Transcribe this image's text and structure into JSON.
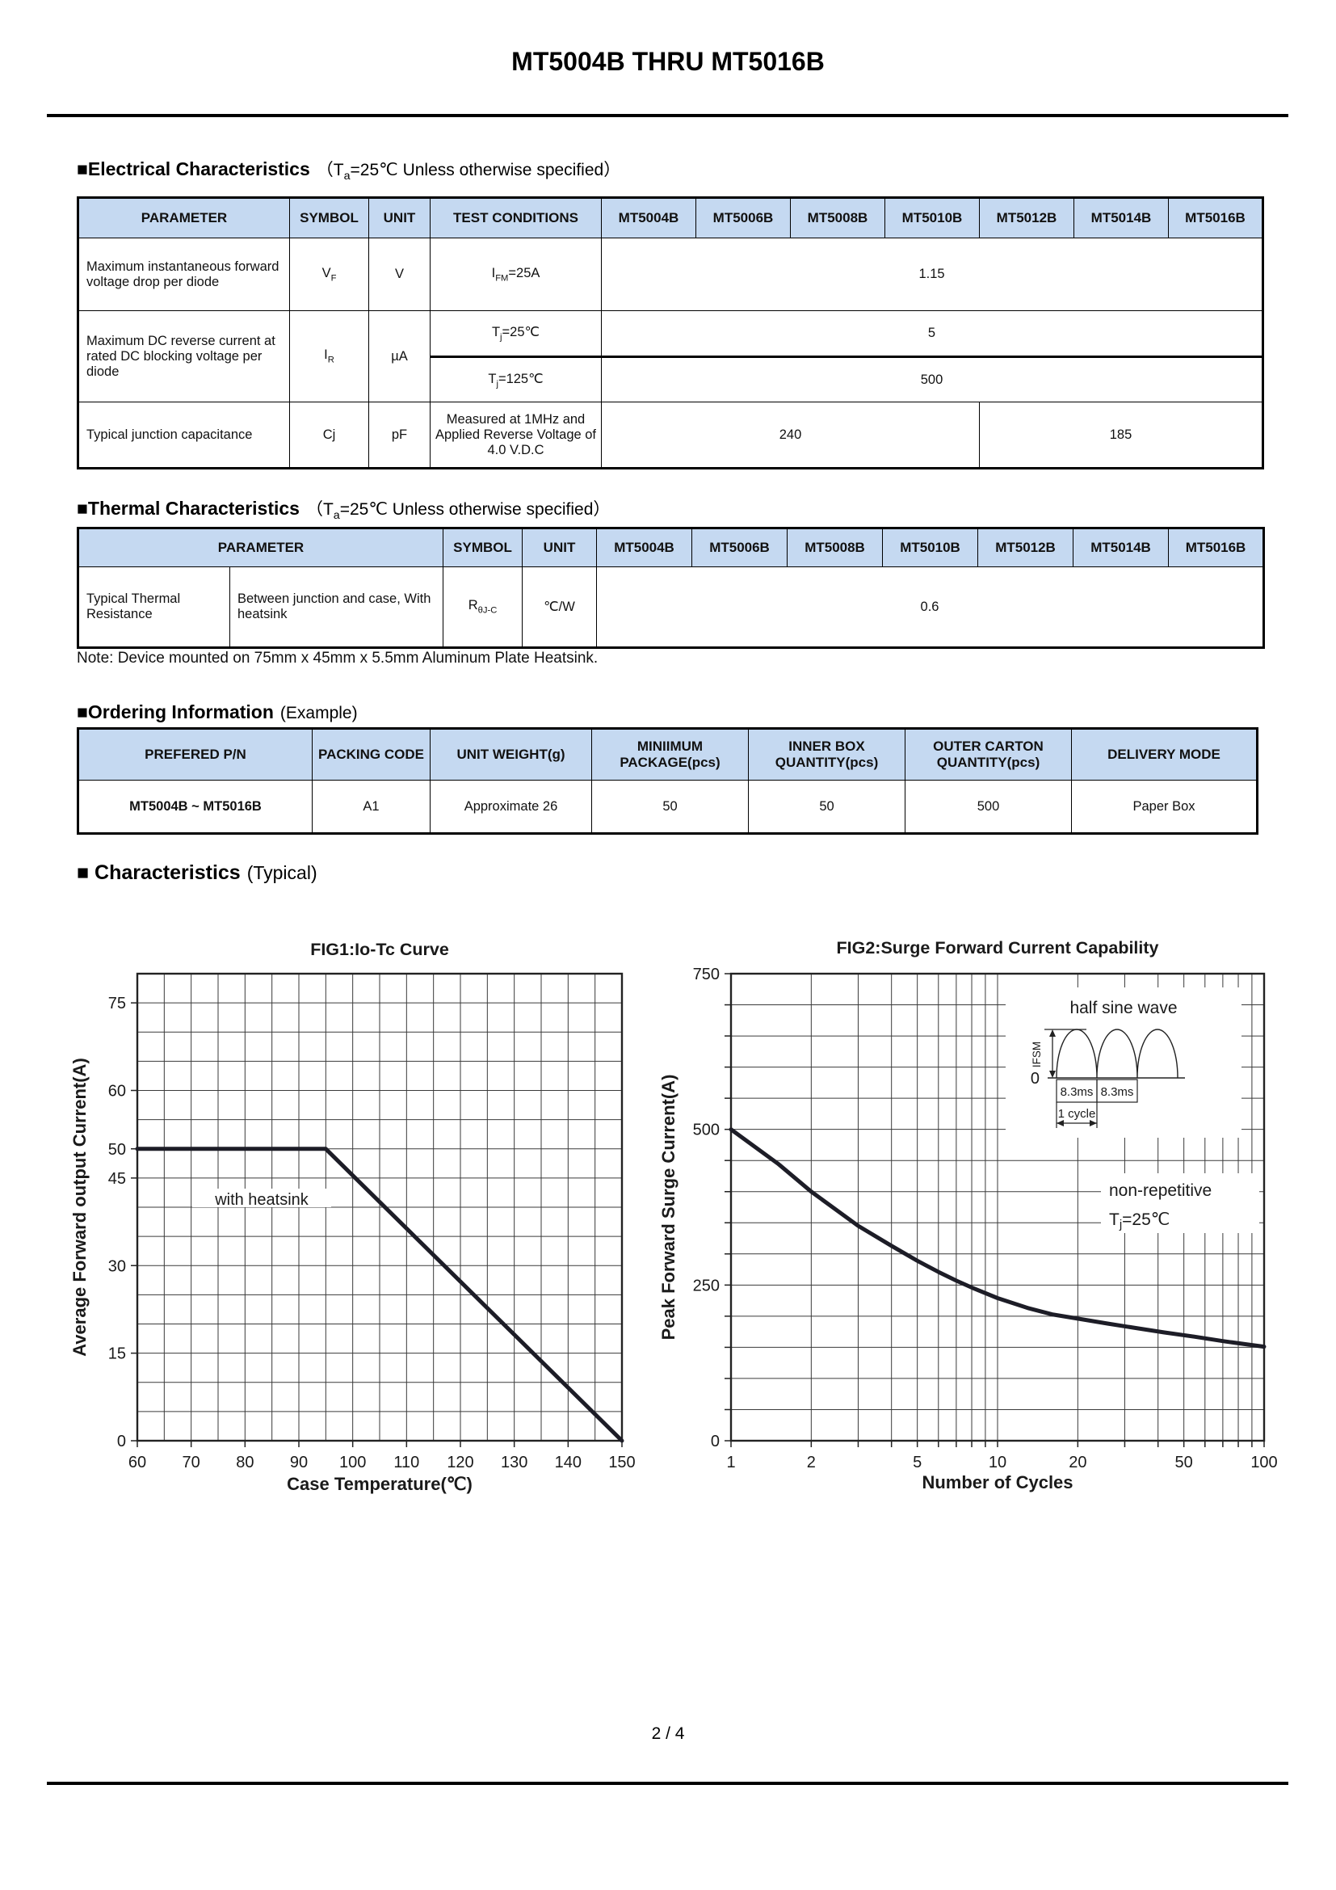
{
  "page": {
    "title": "MT5004B THRU MT5016B",
    "footer": "2 / 4"
  },
  "colors": {
    "table_header_bg": "#c5d9f1",
    "grid_line": "#3a3a3a",
    "curve": "#1d1d27"
  },
  "sections": {
    "electrical": {
      "heading": "■Electrical Characteristics",
      "note_html": "（T<sub>a</sub>=25℃ Unless otherwise specified）"
    },
    "thermal": {
      "heading": "■Thermal Characteristics",
      "note_html": "（T<sub>a</sub>=25℃ Unless otherwise specified）"
    },
    "ordering": {
      "heading": "■Ordering Information",
      "note": "(Example)"
    },
    "characteristics": {
      "heading": "■ Characteristics",
      "note": "(Typical)"
    }
  },
  "electrical_table": {
    "headers": [
      "PARAMETER",
      "SYMBOL",
      "UNIT",
      "TEST CONDITIONS",
      "MT5004B",
      "MT5006B",
      "MT5008B",
      "MT5010B",
      "MT5012B",
      "MT5014B",
      "MT5016B"
    ],
    "vf_row": {
      "parameter": "Maximum instantaneous forward voltage drop per diode",
      "symbol_html": "V<sub>F</sub>",
      "unit": "V",
      "condition_html": "I<sub>FM</sub>=25A",
      "value": "1.15"
    },
    "ir_row": {
      "parameter": "Maximum DC reverse current at rated DC blocking voltage per diode",
      "symbol_html": "I<sub>R</sub>",
      "unit": "µA",
      "condition_1_html": "T<sub>j</sub>=25℃",
      "value_1": "5",
      "condition_2_html": "T<sub>j</sub>=125℃",
      "value_2": "500"
    },
    "cj_row": {
      "parameter": "Typical junction capacitance",
      "symbol": "Cj",
      "unit": "pF",
      "condition": "Measured at 1MHz and Applied Reverse Voltage of 4.0 V.D.C",
      "value_low": "240",
      "value_high": "185"
    }
  },
  "thermal_table": {
    "headers": [
      "PARAMETER",
      "SYMBOL",
      "UNIT",
      "MT5004B",
      "MT5006B",
      "MT5008B",
      "MT5010B",
      "MT5012B",
      "MT5014B",
      "MT5016B"
    ],
    "row": {
      "parameter": "Typical Thermal Resistance",
      "condition": "Between junction and case, With heatsink",
      "symbol_html": "R<sub>θJ-C</sub>",
      "unit": "℃/W",
      "value": "0.6"
    }
  },
  "thermal_note": "Note: Device mounted on 75mm x 45mm x 5.5mm Aluminum Plate Heatsink.",
  "ordering_table": {
    "headers": [
      "PREFERED P/N",
      "PACKING CODE",
      "UNIT WEIGHT(g)",
      "MINIIMUM PACKAGE(pcs)",
      "INNER BOX QUANTITY(pcs)",
      "OUTER CARTON QUANTITY(pcs)",
      "DELIVERY MODE"
    ],
    "row": [
      "MT5004B ~ MT5016B",
      "A1",
      "Approximate 26",
      "50",
      "50",
      "500",
      "Paper Box"
    ]
  },
  "chart_data": [
    {
      "id": "fig1",
      "type": "line",
      "title": "FIG1:Io-Tc Curve",
      "xlabel": "Case Temperature(℃)",
      "ylabel": "Average Forward output Current(A)",
      "xscale": "linear",
      "xlim": [
        60,
        150
      ],
      "ylim": [
        0,
        80
      ],
      "xgrid_step": 5,
      "ygrid_step": 5,
      "xticks": [
        60,
        70,
        80,
        90,
        100,
        110,
        120,
        130,
        140,
        150
      ],
      "yticks": [
        0,
        15,
        30,
        45,
        50,
        60,
        75
      ],
      "stubs": "ticks",
      "grid": "on",
      "legend": "none",
      "series": [
        {
          "name": "Io vs Tc (with heatsink)",
          "points": [
            [
              60,
              50
            ],
            [
              95,
              50
            ],
            [
              150,
              0
            ]
          ]
        }
      ],
      "annotation": {
        "text": "with heatsink",
        "x": 82,
        "y": 42
      }
    },
    {
      "id": "fig2",
      "type": "line",
      "title": "FIG2:Surge Forward Current Capability",
      "xlabel": "Number of Cycles",
      "ylabel": "Peak Forward Surge Current(A)",
      "xscale": "log",
      "xlim": [
        1,
        100
      ],
      "ylim": [
        0,
        750
      ],
      "xgrid": [
        1,
        2,
        3,
        4,
        5,
        6,
        7,
        8,
        9,
        10,
        20,
        30,
        40,
        50,
        60,
        70,
        80,
        90,
        100
      ],
      "ygrid_step": 50,
      "xticks": [
        1,
        2,
        5,
        10,
        20,
        50,
        100
      ],
      "yticks": [
        0,
        250,
        500,
        750
      ],
      "stubs": "grid",
      "grid": "on",
      "legend": "none",
      "series": [
        {
          "name": "IFSM vs number of cycles",
          "points": [
            [
              1,
              500
            ],
            [
              1.5,
              445
            ],
            [
              2,
              400
            ],
            [
              3,
              345
            ],
            [
              4,
              313
            ],
            [
              5,
              289
            ],
            [
              6,
              271
            ],
            [
              7,
              257
            ],
            [
              8,
              246
            ],
            [
              10,
              229
            ],
            [
              13,
              213
            ],
            [
              16,
              203
            ],
            [
              20,
              196
            ],
            [
              26,
              188
            ],
            [
              33,
              181
            ],
            [
              42,
              174
            ],
            [
              55,
              167
            ],
            [
              70,
              160
            ],
            [
              85,
              155
            ],
            [
              100,
              151
            ]
          ]
        }
      ],
      "annotations": {
        "line1": "non-repetitive",
        "line2_pre": "T",
        "line2_sub": "j",
        "line2_post": "=25℃"
      },
      "inset": {
        "title": "half sine wave",
        "y_axis_label": "IFSM",
        "zero": "0",
        "interval_1": "8.3ms",
        "interval_2": "8.3ms",
        "cycle": "1 cycle"
      }
    }
  ]
}
